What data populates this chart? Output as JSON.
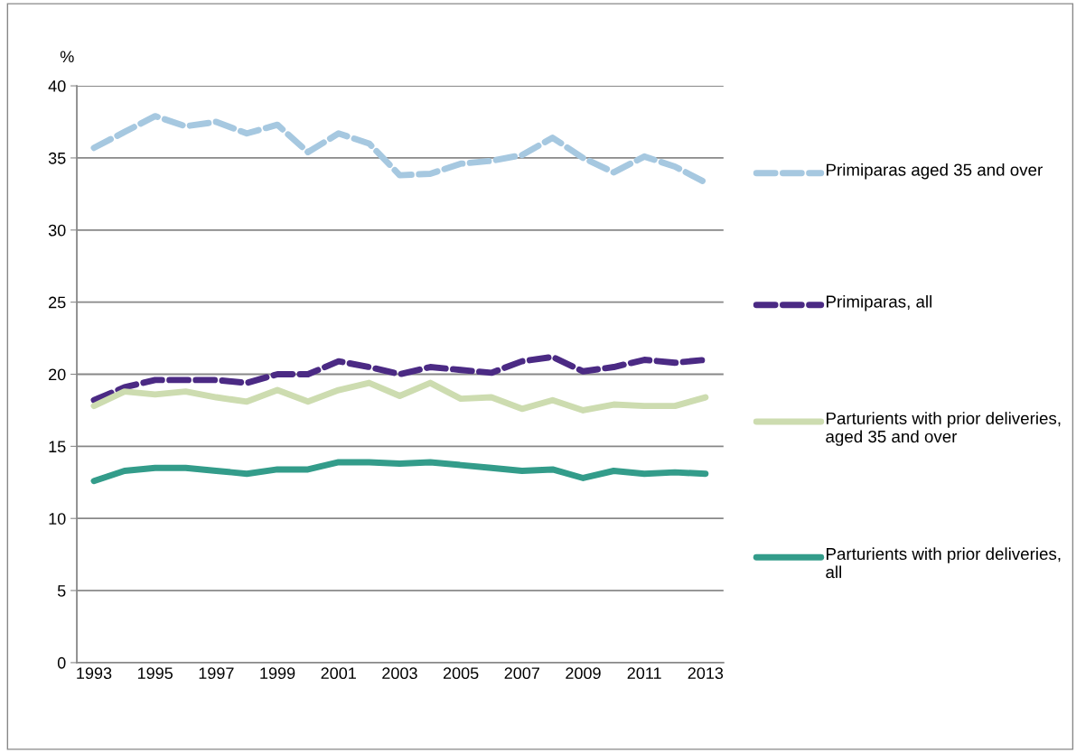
{
  "chart_data": {
    "type": "line",
    "ylabel": "%",
    "categories": [
      "1993",
      null,
      "1995",
      null,
      "1997",
      null,
      "1999",
      null,
      "2001",
      null,
      "2003",
      null,
      "2005",
      null,
      "2007",
      null,
      "2009",
      null,
      "2011",
      null,
      "2013"
    ],
    "ylim": [
      0,
      40
    ],
    "yticks": [
      0,
      5,
      10,
      15,
      20,
      25,
      30,
      35,
      40
    ],
    "grid": "y",
    "legend": "right",
    "series": [
      {
        "name": "Primiparas aged 35 and over",
        "color": "#a6c8e0",
        "line_style": "dashed",
        "values": [
          35.7,
          36.8,
          37.9,
          37.2,
          37.5,
          36.7,
          37.3,
          35.4,
          36.7,
          36.0,
          33.8,
          33.9,
          34.6,
          34.8,
          35.2,
          36.4,
          35.0,
          34.0,
          35.1,
          34.4,
          33.3
        ]
      },
      {
        "name": "Primiparas, all",
        "color": "#4b2a84",
        "line_style": "dashed",
        "values": [
          18.2,
          19.1,
          19.6,
          19.6,
          19.6,
          19.4,
          20.0,
          20.0,
          20.9,
          20.5,
          20.0,
          20.5,
          20.3,
          20.1,
          20.9,
          21.2,
          20.2,
          20.5,
          21.0,
          20.8,
          21.0
        ]
      },
      {
        "name": "Parturients with prior deliveries, aged 35 and over",
        "color": "#cddcb0",
        "line_style": "solid",
        "values": [
          17.8,
          18.8,
          18.6,
          18.8,
          18.4,
          18.1,
          18.9,
          18.1,
          18.9,
          19.4,
          18.5,
          19.4,
          18.3,
          18.4,
          17.6,
          18.2,
          17.5,
          17.9,
          17.8,
          17.8,
          18.4
        ]
      },
      {
        "name": "Parturients with prior deliveries, all",
        "color": "#339c8a",
        "line_style": "solid",
        "values": [
          12.6,
          13.3,
          13.5,
          13.5,
          13.3,
          13.1,
          13.4,
          13.4,
          13.9,
          13.9,
          13.8,
          13.9,
          13.7,
          13.5,
          13.3,
          13.4,
          12.8,
          13.3,
          13.1,
          13.2,
          13.1
        ]
      }
    ]
  }
}
